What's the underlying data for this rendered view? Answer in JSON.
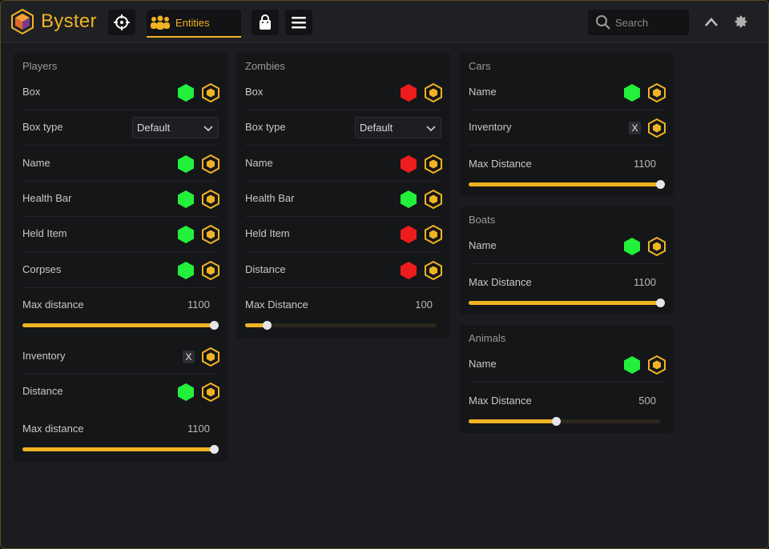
{
  "app": {
    "brand": "Byster",
    "tab_label": "Entities",
    "search_placeholder": "Search"
  },
  "colors": {
    "accent": "#f0b323",
    "on": "#22f03a",
    "off": "#ee1c1c"
  },
  "icons": {
    "logo": "byster-logo-icon",
    "crosshair": "crosshair-icon",
    "entities": "people-group-icon",
    "bag": "shopping-bag-icon",
    "menu": "hamburger-menu-icon",
    "search": "search-icon",
    "collapse": "chevron-up-icon",
    "settings": "gear-icon"
  },
  "players": {
    "title": "Players",
    "rows": [
      {
        "label": "Box",
        "state": "on"
      },
      {
        "label": "Box type",
        "select": "Default"
      },
      {
        "label": "Name",
        "state": "on"
      },
      {
        "label": "Health Bar",
        "state": "on"
      },
      {
        "label": "Held Item",
        "state": "on"
      },
      {
        "label": "Corpses",
        "state": "on"
      }
    ],
    "slider1": {
      "label": "Max distance",
      "value": "1100",
      "fraction": 1.0
    },
    "rows2": [
      {
        "label": "Inventory",
        "state": "x",
        "x_text": "X"
      },
      {
        "label": "Distance",
        "state": "on"
      }
    ],
    "slider2": {
      "label": "Max distance",
      "value": "1100",
      "fraction": 1.0
    }
  },
  "zombies": {
    "title": "Zombies",
    "rows": [
      {
        "label": "Box",
        "state": "off"
      },
      {
        "label": "Box type",
        "select": "Default"
      },
      {
        "label": "Name",
        "state": "off"
      },
      {
        "label": "Health Bar",
        "state": "on"
      },
      {
        "label": "Held Item",
        "state": "off"
      },
      {
        "label": "Distance",
        "state": "off"
      }
    ],
    "slider": {
      "label": "Max Distance",
      "value": "100",
      "fraction": 0.115
    }
  },
  "cars": {
    "title": "Cars",
    "rows": [
      {
        "label": "Name",
        "state": "on"
      },
      {
        "label": "Inventory",
        "state": "x",
        "x_text": "X"
      }
    ],
    "slider": {
      "label": "Max Distance",
      "value": "1100",
      "fraction": 1.0
    }
  },
  "boats": {
    "title": "Boats",
    "rows": [
      {
        "label": "Name",
        "state": "on"
      }
    ],
    "slider": {
      "label": "Max Distance",
      "value": "1100",
      "fraction": 1.0
    }
  },
  "animals": {
    "title": "Animals",
    "rows": [
      {
        "label": "Name",
        "state": "on"
      }
    ],
    "slider": {
      "label": "Max Distance",
      "value": "500",
      "fraction": 0.455
    }
  }
}
